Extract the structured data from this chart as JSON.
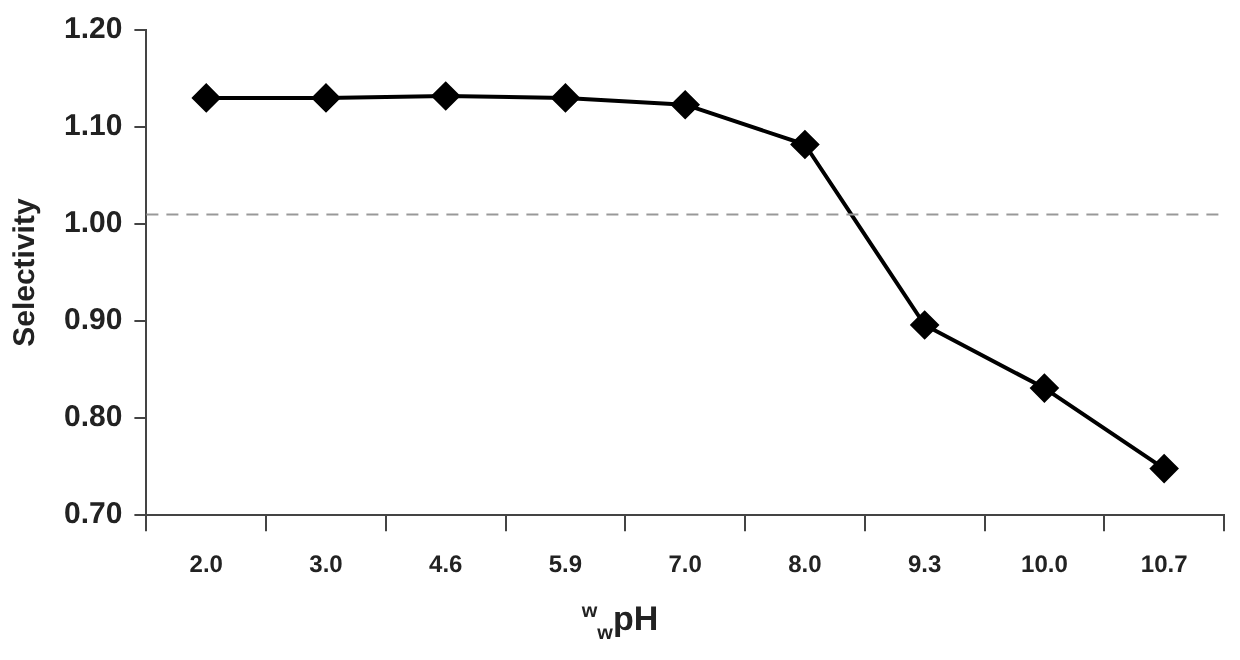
{
  "chart_data": {
    "type": "line",
    "ylabel": "Selectivity",
    "xlabel": "$^{w}$$_{w}$pH",
    "categories": [
      "2.0",
      "3.0",
      "4.6",
      "5.9",
      "7.0",
      "8.0",
      "9.3",
      "10.0",
      "10.7"
    ],
    "series": [
      {
        "color": "#000000",
        "values": [
          1.13,
          1.13,
          1.132,
          1.13,
          1.123,
          1.082,
          0.896,
          0.831,
          0.748
        ]
      }
    ],
    "ylim": [
      0.7,
      1.2
    ],
    "yticks": [
      {
        "value": 0.7,
        "label": "0.70"
      },
      {
        "value": 0.8,
        "label": "0.80"
      },
      {
        "value": 0.9,
        "label": "0.90"
      },
      {
        "value": 1.0,
        "label": "1.00"
      },
      {
        "value": 1.1,
        "label": "1.10"
      },
      {
        "value": 1.2,
        "label": "1.20"
      }
    ],
    "ref_lines": [
      {
        "axis": "y",
        "value": 1.01,
        "color": "#999999",
        "line_style": "dashed"
      }
    ],
    "grid": false,
    "legend": false,
    "marker": "diamond",
    "line_style": "solid"
  }
}
